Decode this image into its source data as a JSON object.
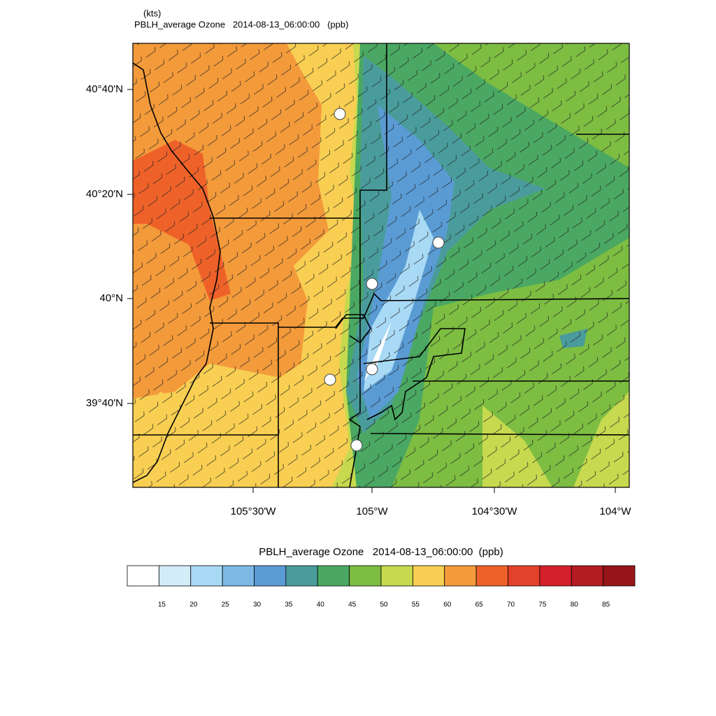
{
  "header": {
    "units": "(kts)",
    "title": "PBLH_average Ozone   2014-08-13_06:00:00   (ppb)"
  },
  "map": {
    "lat_labels": [
      "40°40'N",
      "40°20'N",
      "40°N",
      "39°40'N"
    ],
    "lon_labels": [
      "105°30'W",
      "105°W",
      "104°30'W",
      "104°W"
    ]
  },
  "colorbar": {
    "title": "PBLH_average Ozone   2014-08-13_06:00:00  (ppb)",
    "colors": [
      "#ffffff",
      "#d2ecf8",
      "#a9daf5",
      "#7db9e4",
      "#5a9bd4",
      "#4a9c9c",
      "#4aa862",
      "#7dbd42",
      "#c6d94f",
      "#f8cf52",
      "#f39a3b",
      "#ee6229",
      "#e4412a",
      "#d3202b",
      "#b51b23",
      "#961518"
    ],
    "labels": [
      15,
      20,
      25,
      30,
      35,
      40,
      45,
      50,
      55,
      60,
      65,
      70,
      75,
      80,
      85
    ]
  }
}
